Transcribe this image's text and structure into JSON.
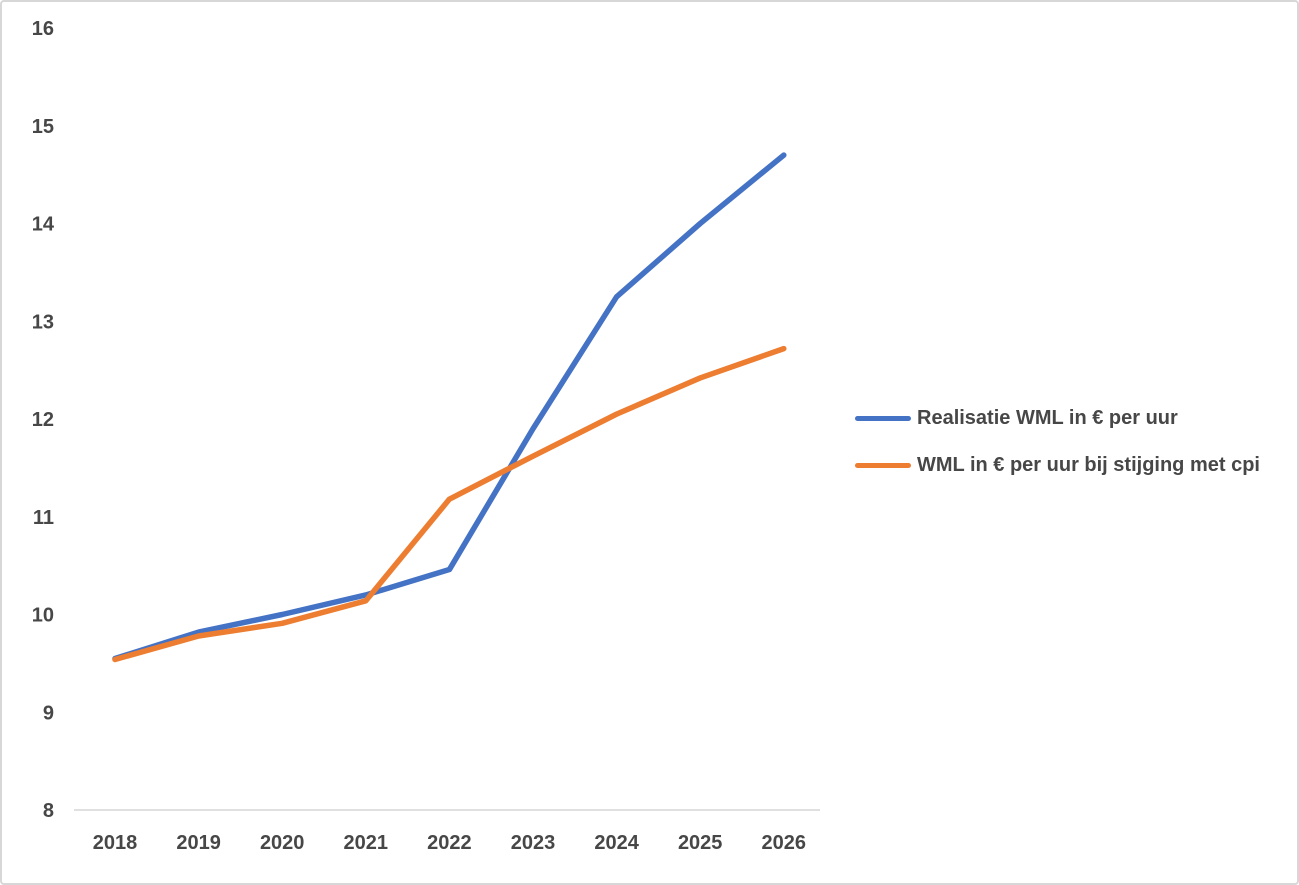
{
  "chart_data": {
    "type": "line",
    "title": "",
    "xlabel": "",
    "ylabel": "",
    "categories": [
      "2018",
      "2019",
      "2020",
      "2021",
      "2022",
      "2023",
      "2024",
      "2025",
      "2026"
    ],
    "series": [
      {
        "name": "Realisatie WML in € per uur",
        "color": "#4472C4",
        "values": [
          9.55,
          9.82,
          10.0,
          10.2,
          10.46,
          11.9,
          13.25,
          14.0,
          14.7
        ]
      },
      {
        "name": "WML in € per uur bij stijging met cpi",
        "color": "#ED7D31",
        "values": [
          9.54,
          9.78,
          9.91,
          10.14,
          11.18,
          11.62,
          12.05,
          12.42,
          12.72
        ]
      }
    ],
    "ylim": [
      8,
      16
    ],
    "ytick_step": 1,
    "ytick_labels": [
      "8",
      "9",
      "10",
      "11",
      "12",
      "13",
      "14",
      "15",
      "16"
    ],
    "grid": false,
    "legend_position": "right",
    "axis_line_color": "#d6d6d6",
    "label_color": "#474747"
  }
}
